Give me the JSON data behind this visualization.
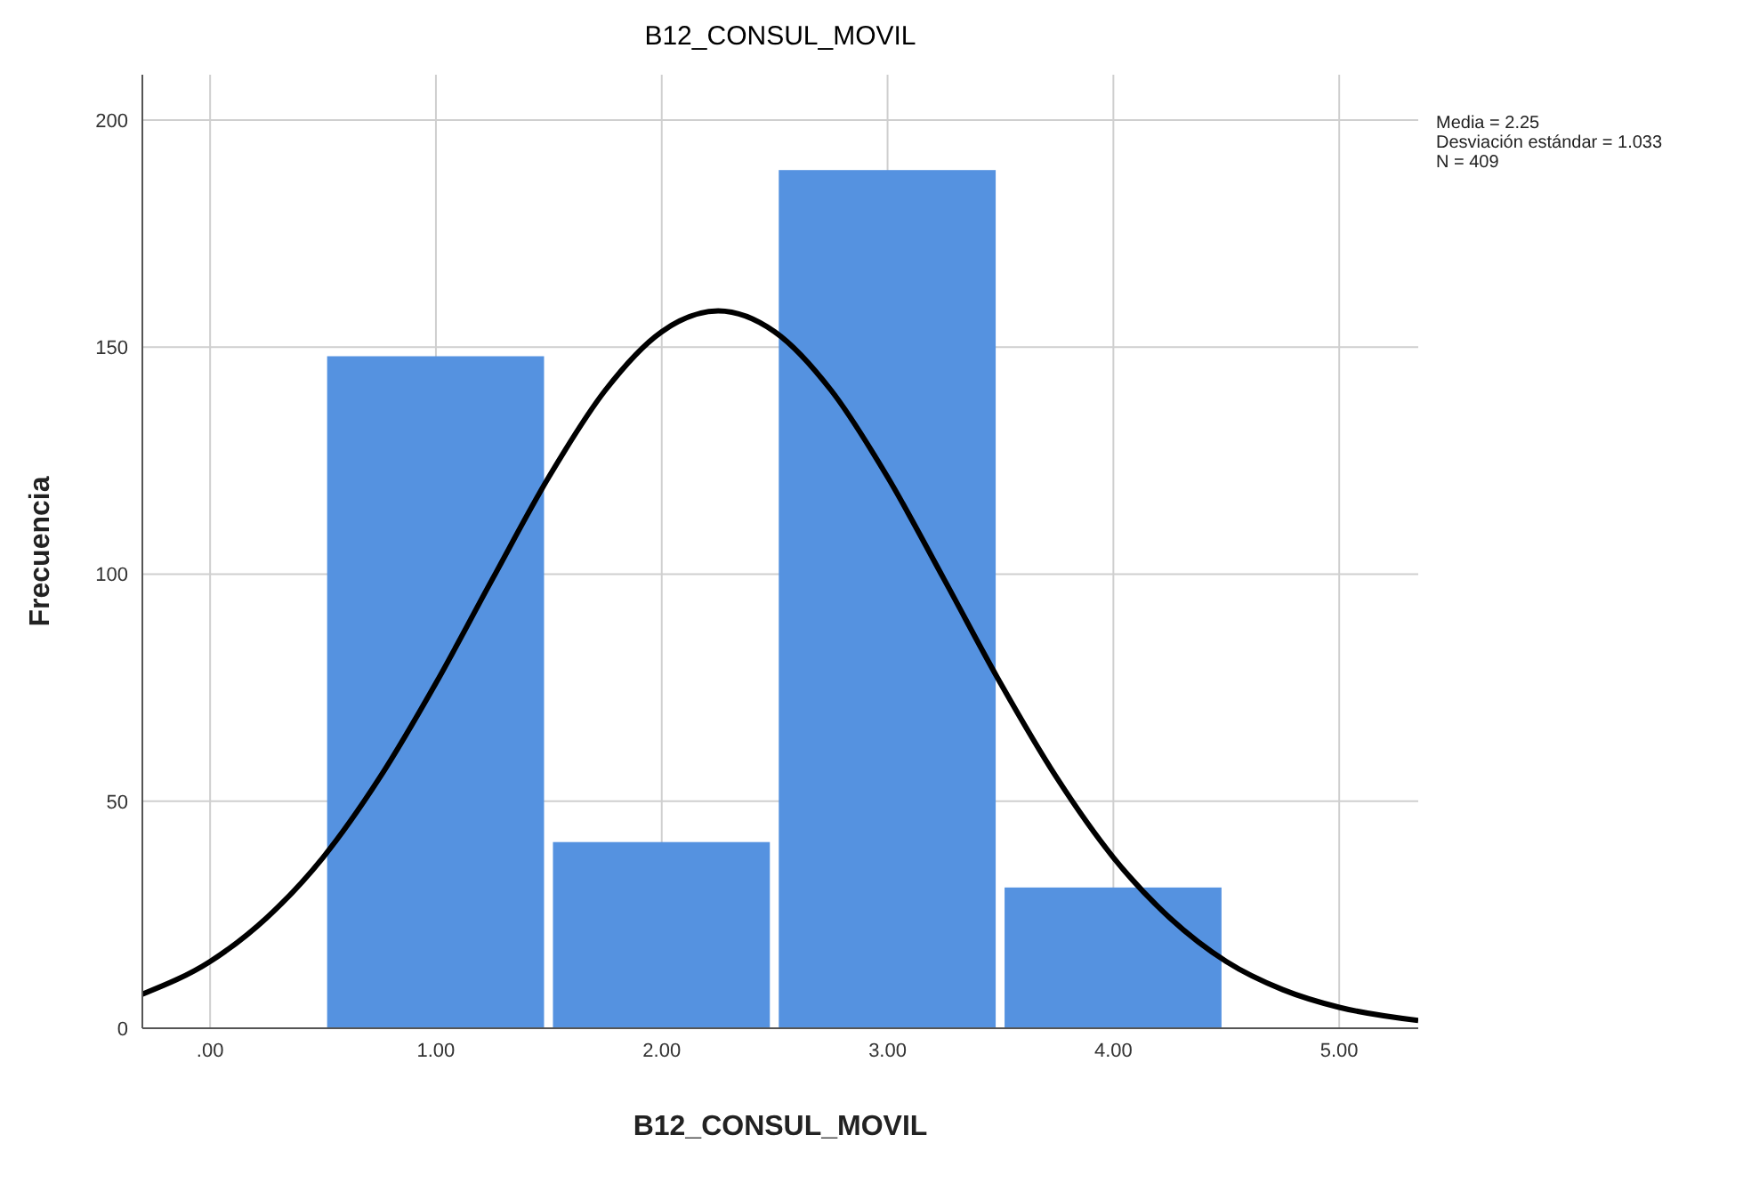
{
  "chart_data": {
    "type": "histogram",
    "title": "B12_CONSUL_MOVIL",
    "xlabel": "B12_CONSUL_MOVIL",
    "ylabel": "Frecuencia",
    "annotations": [
      "Media = 2.25",
      "Desviación estándar = 1.033",
      "N = 409"
    ],
    "bins": [
      0.5,
      1.5,
      2.5,
      3.5,
      4.5
    ],
    "series": [
      {
        "color": "#5592e0",
        "values": [
          148,
          41,
          189,
          31
        ]
      },
      {
        "type": "line",
        "color": "#000000",
        "x": [
          -0.3,
          0,
          0.25,
          0.5,
          0.75,
          1,
          1.25,
          1.5,
          1.75,
          2,
          2.25,
          2.5,
          2.75,
          3,
          3.25,
          3.5,
          3.75,
          4,
          4.25,
          4.5,
          4.75,
          5,
          5.35
        ],
        "values": [
          7.5,
          14.7,
          24.3,
          37.6,
          55.1,
          76,
          98.9,
          121.4,
          140.5,
          153.4,
          158,
          153.4,
          140.5,
          121.4,
          98.9,
          76,
          55.1,
          37.6,
          24.3,
          14.7,
          8.5,
          4.6,
          1.7
        ]
      }
    ],
    "xlim": [
      -0.3,
      5.35
    ],
    "ylim": [
      0,
      210
    ],
    "xticks": [
      {
        "value": 0,
        "label": ".00"
      },
      {
        "value": 1,
        "label": "1.00"
      },
      {
        "value": 2,
        "label": "2.00"
      },
      {
        "value": 3,
        "label": "3.00"
      },
      {
        "value": 4,
        "label": "4.00"
      },
      {
        "value": 5,
        "label": "5.00"
      }
    ],
    "yticks": [
      0,
      50,
      100,
      150,
      200
    ],
    "grid": true,
    "marker": "none",
    "line_style": "solid"
  }
}
